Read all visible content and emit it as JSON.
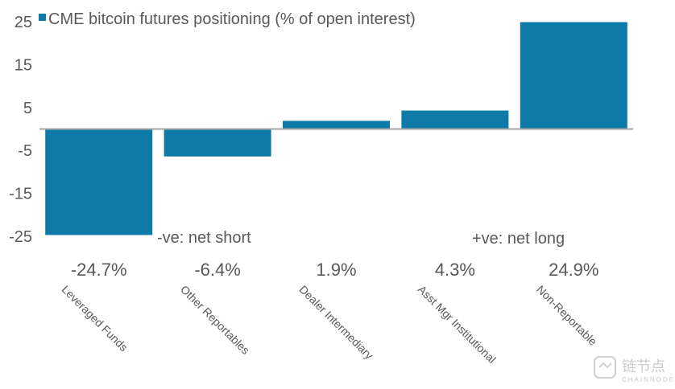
{
  "chart_data": {
    "type": "bar",
    "title": "",
    "xlabel": "",
    "ylabel": "",
    "ylim": [
      -25,
      25
    ],
    "yticks": [
      25,
      15,
      5,
      -5,
      -15,
      -25
    ],
    "grid": false,
    "legend_position": "top-left",
    "categories": [
      "Leveraged Funds",
      "Other Reportables",
      "Dealer Intermediary",
      "Asst Mgr Institutional",
      "Non-Reportable"
    ],
    "series": [
      {
        "name": "CME bitcoin futures positioning (% of open interest)",
        "color": "#0e7aa8",
        "values": [
          -24.7,
          -6.4,
          1.9,
          4.3,
          24.9
        ],
        "data_labels": [
          "-24.7%",
          "-6.4%",
          "1.9%",
          "4.3%",
          "24.9%"
        ]
      }
    ],
    "annotations": [
      "-ve: net short",
      "+ve: net long"
    ],
    "axis_color": "#a6a6a6"
  },
  "watermark": {
    "icon": "chainnode-logo-icon",
    "text": "CHAINNODE"
  }
}
